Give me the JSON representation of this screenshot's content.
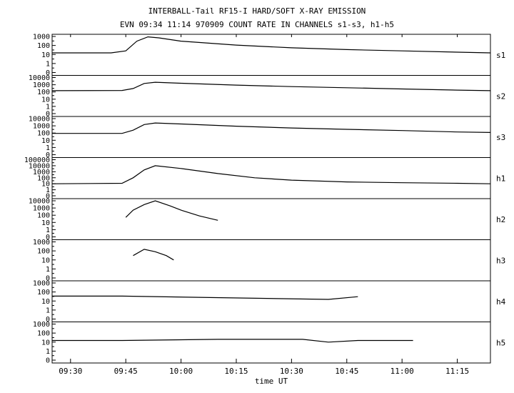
{
  "title_line1": "INTERBALL-Tail RF15-I HARD/SOFT X-RAY EMISSION",
  "title_line2": "EVN 09:34 11:14 970909  COUNT RATE IN CHANNELS s1-s3, h1-h5",
  "xlabel": "time UT",
  "chart_data": {
    "type": "line",
    "title": "INTERBALL-Tail RF15-I HARD/SOFT X-RAY EMISSION",
    "subtitle": "EVN 09:34 11:14 970909  COUNT RATE IN CHANNELS s1-s3, h1-h5",
    "xlabel": "time UT",
    "x_range": [
      "09:25",
      "11:24"
    ],
    "x_ticks": [
      "09:30",
      "09:45",
      "10:00",
      "10:15",
      "10:30",
      "10:45",
      "11:00",
      "11:15"
    ],
    "y_scale": "log",
    "grid": false,
    "panels": [
      {
        "name": "s1",
        "y_ticks": [
          "1000",
          "100",
          "10",
          "1",
          "0"
        ],
        "points": [
          [
            "09:25",
            15
          ],
          [
            "09:41",
            15
          ],
          [
            "09:45",
            25
          ],
          [
            "09:48",
            300
          ],
          [
            "09:51",
            900
          ],
          [
            "09:54",
            700
          ],
          [
            "10:00",
            300
          ],
          [
            "10:15",
            110
          ],
          [
            "10:30",
            55
          ],
          [
            "10:45",
            35
          ],
          [
            "11:00",
            25
          ],
          [
            "11:15",
            18
          ],
          [
            "11:24",
            15
          ]
        ]
      },
      {
        "name": "s2",
        "y_ticks": [
          "10000",
          "1000",
          "100",
          "10",
          "1",
          "0"
        ],
        "points": [
          [
            "09:25",
            150
          ],
          [
            "09:44",
            160
          ],
          [
            "09:47",
            300
          ],
          [
            "09:50",
            1500
          ],
          [
            "09:53",
            2200
          ],
          [
            "10:00",
            1600
          ],
          [
            "10:15",
            900
          ],
          [
            "10:30",
            550
          ],
          [
            "10:45",
            380
          ],
          [
            "11:00",
            260
          ],
          [
            "11:15",
            180
          ],
          [
            "11:24",
            150
          ]
        ]
      },
      {
        "name": "s3",
        "y_ticks": [
          "10000",
          "1000",
          "100",
          "10",
          "1",
          "0"
        ],
        "points": [
          [
            "09:25",
            90
          ],
          [
            "09:44",
            90
          ],
          [
            "09:47",
            250
          ],
          [
            "09:50",
            1500
          ],
          [
            "09:53",
            2500
          ],
          [
            "10:00",
            1800
          ],
          [
            "10:15",
            900
          ],
          [
            "10:30",
            500
          ],
          [
            "10:45",
            330
          ],
          [
            "11:00",
            220
          ],
          [
            "11:15",
            140
          ],
          [
            "11:24",
            120
          ]
        ]
      },
      {
        "name": "h1",
        "y_ticks": [
          "100000",
          "10000",
          "1000",
          "100",
          "10",
          "1",
          "0"
        ],
        "points": [
          [
            "09:25",
            10
          ],
          [
            "09:44",
            12
          ],
          [
            "09:47",
            100
          ],
          [
            "09:50",
            2000
          ],
          [
            "09:53",
            10000
          ],
          [
            "10:00",
            3500
          ],
          [
            "10:10",
            500
          ],
          [
            "10:20",
            100
          ],
          [
            "10:30",
            40
          ],
          [
            "10:45",
            20
          ],
          [
            "11:00",
            15
          ],
          [
            "11:15",
            12
          ],
          [
            "11:24",
            10
          ]
        ]
      },
      {
        "name": "h2",
        "y_ticks": [
          "10000",
          "1000",
          "100",
          "10",
          "1",
          "0"
        ],
        "points": [
          [
            "09:45",
            50
          ],
          [
            "09:47",
            500
          ],
          [
            "09:50",
            3000
          ],
          [
            "09:53",
            10000
          ],
          [
            "09:57",
            2000
          ],
          [
            "10:00",
            500
          ],
          [
            "10:05",
            80
          ],
          [
            "10:10",
            20
          ]
        ]
      },
      {
        "name": "h3",
        "y_ticks": [
          "1000",
          "100",
          "10",
          "1",
          "0"
        ],
        "points": [
          [
            "09:47",
            30
          ],
          [
            "09:50",
            150
          ],
          [
            "09:53",
            80
          ],
          [
            "09:56",
            30
          ],
          [
            "09:58",
            10
          ]
        ]
      },
      {
        "name": "h4",
        "y_ticks": [
          "1000",
          "100",
          "10",
          "1",
          "0"
        ],
        "points": [
          [
            "09:25",
            35
          ],
          [
            "09:44",
            35
          ],
          [
            "10:40",
            15
          ],
          [
            "10:48",
            30
          ]
        ]
      },
      {
        "name": "h5",
        "y_ticks": [
          "1000",
          "100",
          "10",
          "1",
          "0"
        ],
        "points": [
          [
            "09:25",
            15
          ],
          [
            "09:44",
            15
          ],
          [
            "10:10",
            20
          ],
          [
            "10:33",
            20
          ],
          [
            "10:40",
            10
          ],
          [
            "10:48",
            15
          ],
          [
            "11:03",
            15
          ]
        ]
      }
    ]
  }
}
